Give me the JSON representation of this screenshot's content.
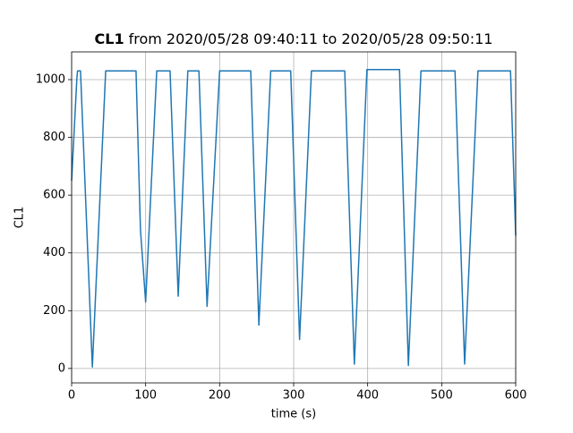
{
  "chart_data": {
    "type": "line",
    "title": {
      "bold": "CL1",
      "text": "from 2020/05/28 09:40:11 to 2020/05/28 09:50:11"
    },
    "xlabel": "time (s)",
    "ylabel": "CL1",
    "xlim": [
      0,
      600
    ],
    "ylim": [
      -50,
      1096
    ],
    "xticks": [
      0,
      100,
      200,
      300,
      400,
      500,
      600
    ],
    "yticks": [
      0,
      200,
      400,
      600,
      800,
      1000
    ],
    "grid": true,
    "series": [
      {
        "name": "CL1",
        "color": "#1f77b4",
        "x": [
          0,
          7,
          8,
          12,
          28,
          46,
          87,
          93,
          100,
          115,
          133,
          144,
          157,
          172,
          183,
          200,
          242,
          253,
          269,
          296,
          308,
          324,
          369,
          382,
          399,
          443,
          455,
          472,
          518,
          531,
          549,
          593,
          600
        ],
        "values": [
          650,
          1000,
          1030,
          1030,
          5,
          1030,
          1030,
          480,
          230,
          1030,
          1030,
          250,
          1030,
          1030,
          215,
          1030,
          1030,
          150,
          1030,
          1030,
          100,
          1030,
          1030,
          15,
          1035,
          1035,
          10,
          1030,
          1030,
          15,
          1030,
          1030,
          460
        ]
      }
    ]
  }
}
